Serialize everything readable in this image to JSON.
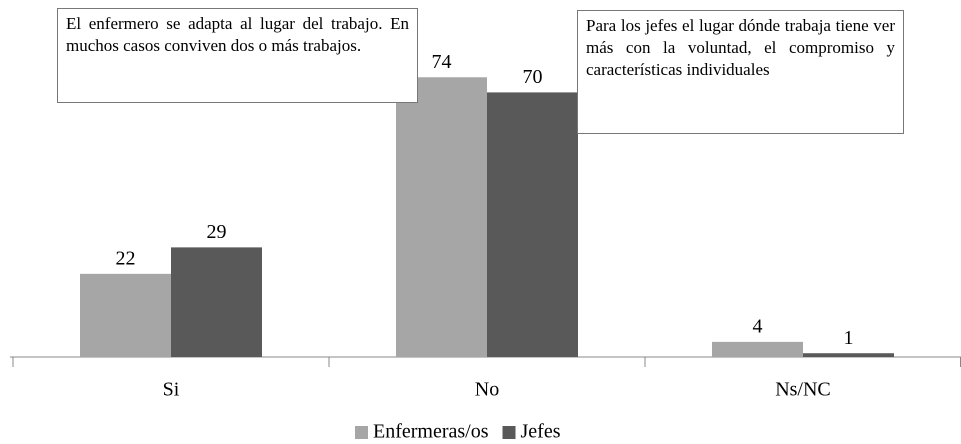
{
  "chart_data": {
    "type": "bar",
    "categories": [
      "Si",
      "No",
      "Ns/NC"
    ],
    "series": [
      {
        "name": "Enfermeras/os",
        "color": "#a6a6a6",
        "values": [
          22,
          74,
          4
        ]
      },
      {
        "name": "Jefes",
        "color": "#595959",
        "values": [
          29,
          70,
          1
        ]
      }
    ],
    "annotations": [
      "El enfermero se adapta al lugar del trabajo. En muchos casos conviven dos o más trabajos.",
      "Para los jefes el lugar dónde trabaja tiene ver más con la voluntad, el compromiso y características individuales"
    ],
    "legend": "bottom"
  }
}
